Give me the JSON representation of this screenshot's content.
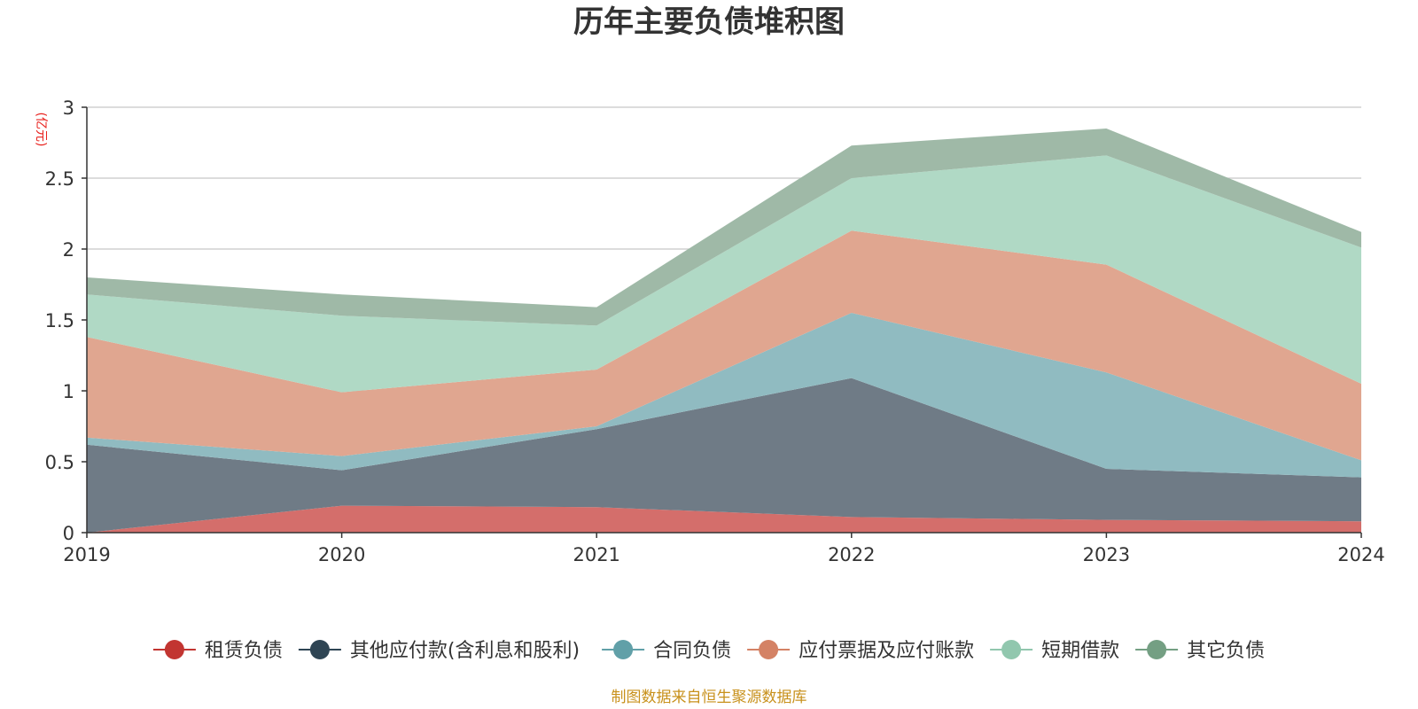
{
  "chart_data": {
    "type": "area",
    "stacked": true,
    "title": "历年主要负债堆积图",
    "unit_label": "(亿元)",
    "x": [
      "2019",
      "2020",
      "2021",
      "2022",
      "2023",
      "2024"
    ],
    "yticks": [
      "0",
      "0.5",
      "1",
      "1.5",
      "2",
      "2.5",
      "3"
    ],
    "ylim": [
      0,
      3
    ],
    "grid": true,
    "legend_position": "bottom",
    "series": [
      {
        "name": "租赁负债",
        "color": "#c23531",
        "fill": "#d46e6b",
        "values": [
          0.0,
          0.19,
          0.18,
          0.11,
          0.09,
          0.08
        ]
      },
      {
        "name": "其他应付款(含利息和股利)",
        "color": "#2f4554",
        "fill": "#6f7b86",
        "values": [
          0.62,
          0.25,
          0.55,
          0.98,
          0.36,
          0.31
        ]
      },
      {
        "name": "合同负债",
        "color": "#61a0a8",
        "fill": "#90bbc1",
        "values": [
          0.05,
          0.1,
          0.02,
          0.46,
          0.68,
          0.12
        ]
      },
      {
        "name": "应付票据及应付账款",
        "color": "#d48265",
        "fill": "#e0a690",
        "values": [
          0.71,
          0.45,
          0.4,
          0.58,
          0.76,
          0.54
        ]
      },
      {
        "name": "短期借款",
        "color": "#91c7ae",
        "fill": "#b0d9c5",
        "values": [
          0.3,
          0.54,
          0.31,
          0.37,
          0.77,
          0.96
        ]
      },
      {
        "name": "其它负债",
        "color": "#749f83",
        "fill": "#9fb9a7",
        "values": [
          0.12,
          0.15,
          0.13,
          0.23,
          0.19,
          0.11
        ]
      }
    ],
    "source": "制图数据来自恒生聚源数据库"
  }
}
